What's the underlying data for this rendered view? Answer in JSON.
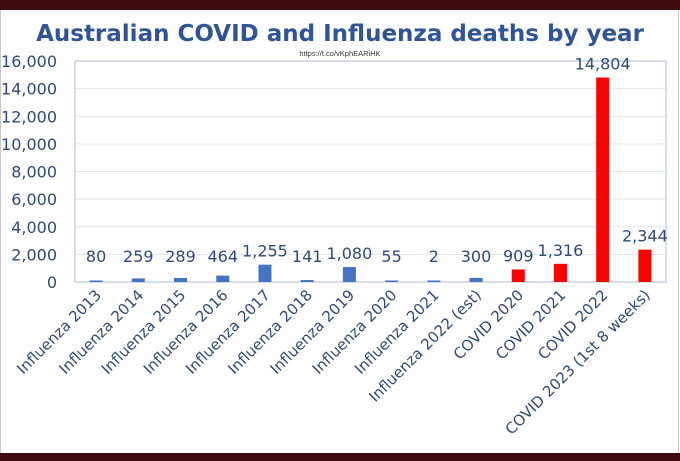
{
  "chart_data": {
    "type": "bar",
    "title": "Australian COVID and Influenza deaths by year",
    "subtitle": "https://t.co/vKphEARiHK",
    "xlabel": "",
    "ylabel": "",
    "ylim": [
      0,
      16000
    ],
    "yticks": [
      0,
      2000,
      4000,
      6000,
      8000,
      10000,
      12000,
      14000,
      16000
    ],
    "ytick_labels": [
      "0",
      "2,000",
      "4,000",
      "6,000",
      "8,000",
      "10,000",
      "12,000",
      "14,000",
      "16,000"
    ],
    "grid": true,
    "legend": "none",
    "categories": [
      "Influenza 2013",
      "Influenza 2014",
      "Influenza 2015",
      "Influenza 2016",
      "Influenza 2017",
      "Influenza 2018",
      "Influenza 2019",
      "Influenza 2020",
      "Influenza 2021",
      "Influenza 2022 (est)",
      "COVID 2020",
      "COVID 2021",
      "COVID 2022",
      "COVID 2023 (1st 8 weeks)"
    ],
    "values": [
      80,
      259,
      289,
      464,
      1255,
      141,
      1080,
      55,
      2,
      300,
      909,
      1316,
      14804,
      2344
    ],
    "data_labels": [
      "80",
      "259",
      "289",
      "464",
      "1,255",
      "141",
      "1,080",
      "55",
      "2",
      "300",
      "909",
      "1,316",
      "14,804",
      "2,344"
    ],
    "bar_colors": [
      "#4472c4",
      "#4472c4",
      "#4472c4",
      "#4472c4",
      "#4472c4",
      "#4472c4",
      "#4472c4",
      "#4472c4",
      "#4472c4",
      "#4472c4",
      "#ff0000",
      "#ff0000",
      "#ff0000",
      "#ff0000"
    ]
  },
  "colors": {
    "influenza": "#4472c4",
    "covid": "#ff0000",
    "title": "#2f5597",
    "frame": "#3d0c0f"
  }
}
